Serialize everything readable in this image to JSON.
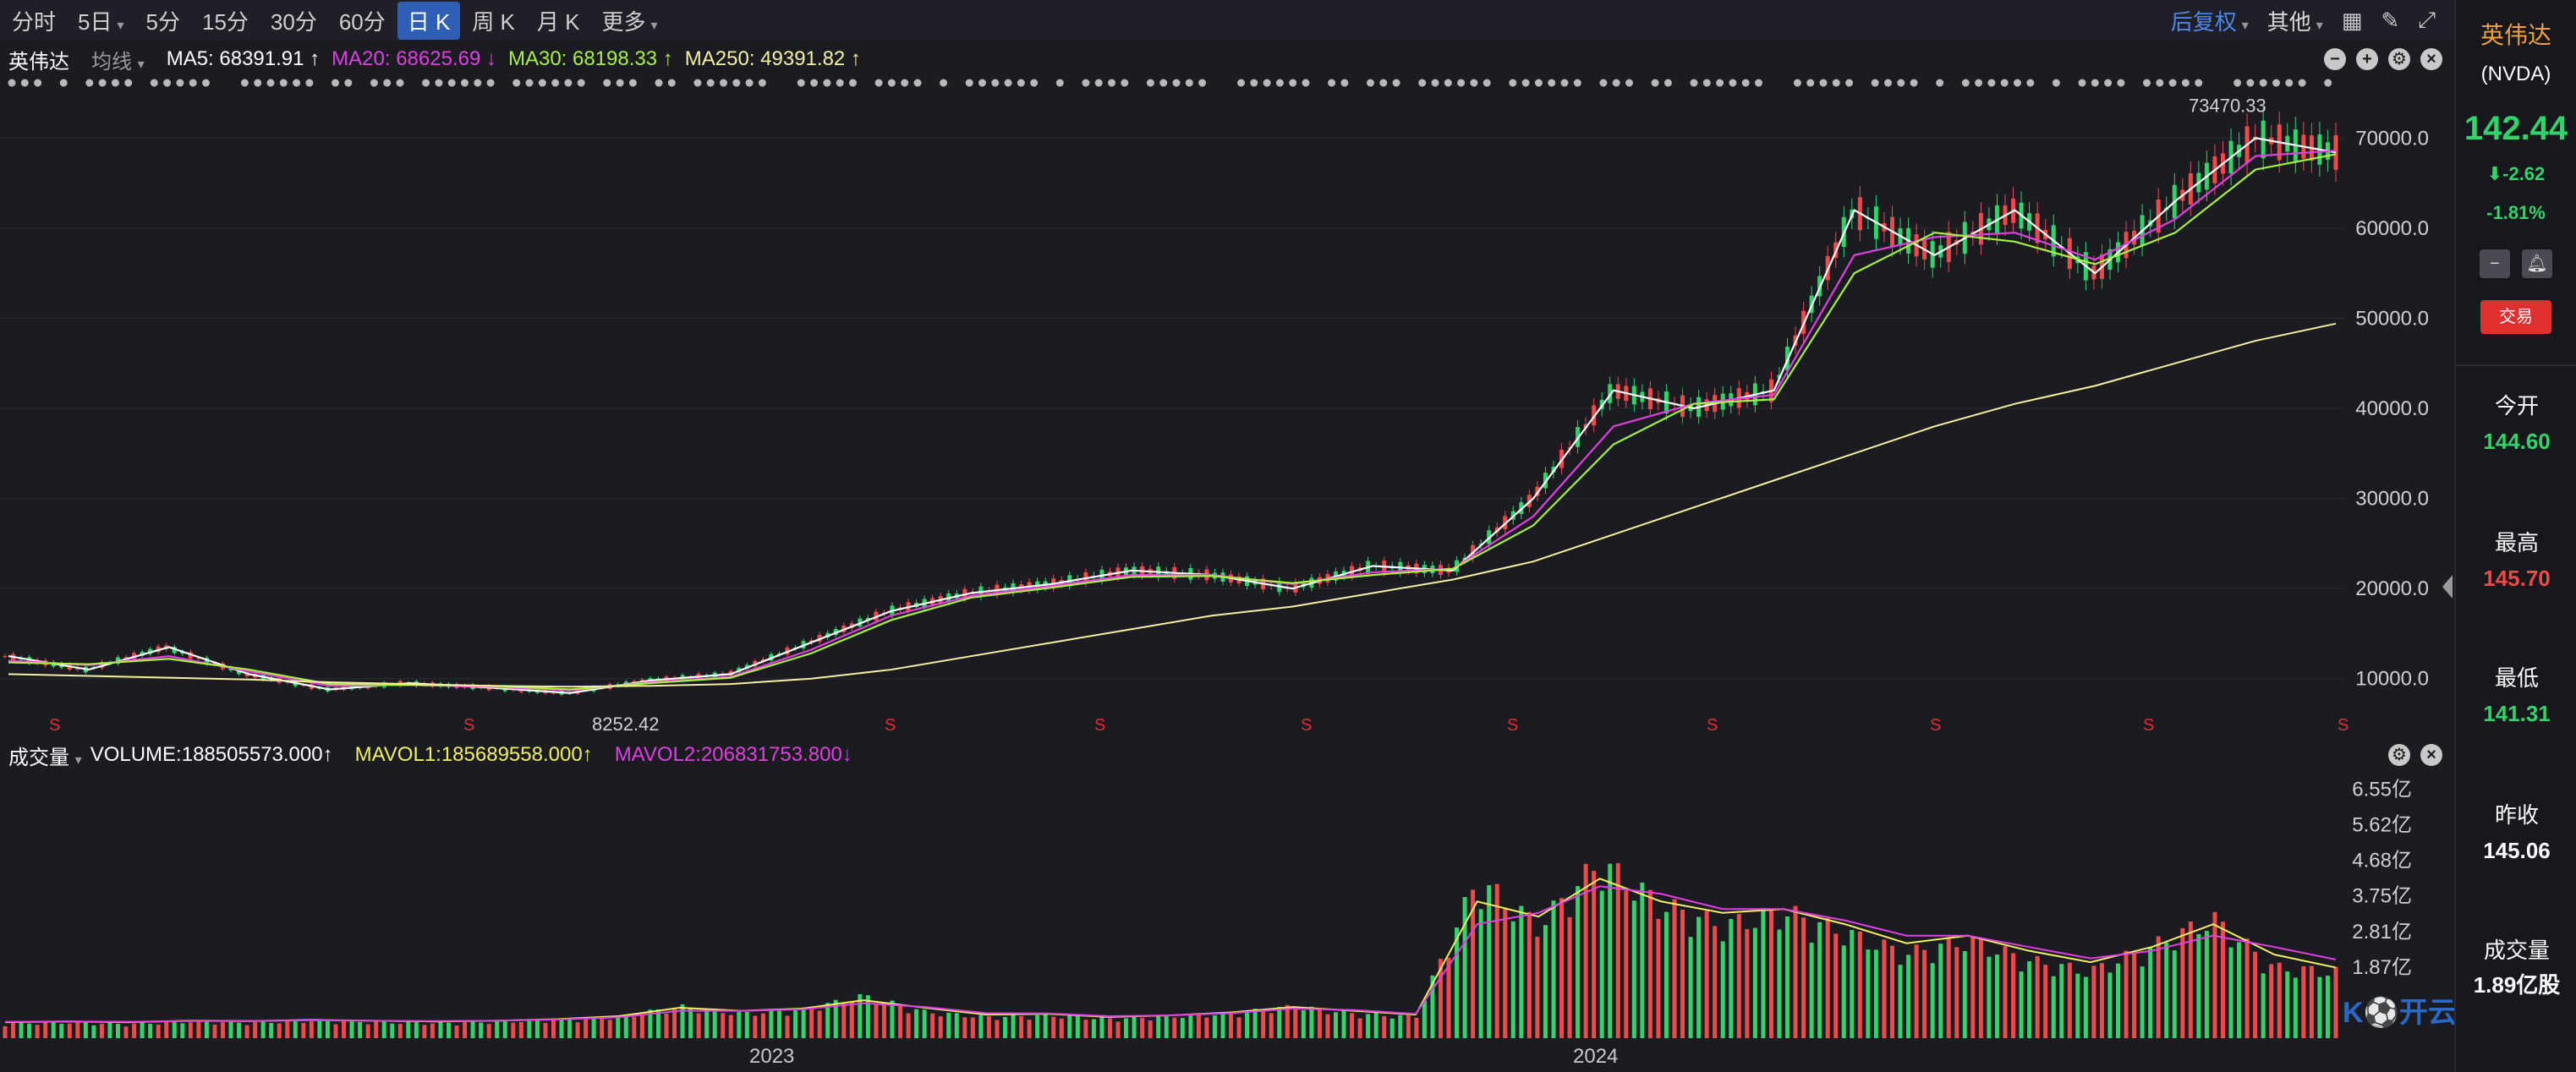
{
  "toolbar": {
    "timeframes": [
      "分时",
      "5日",
      "5分",
      "15分",
      "30分",
      "60分",
      "日 K",
      "周 K",
      "月 K",
      "更多"
    ],
    "active": "日 K",
    "adjust": "后复权",
    "other": "其他"
  },
  "main_panel": {
    "name": "英伟达",
    "indicator": "均线",
    "ma5": "MA5: 68391.91 ↑",
    "ma20": "MA20: 68625.69 ↓",
    "ma30": "MA30: 68198.33 ↑",
    "ma250": "MA250: 49391.82 ↑",
    "high_label": "73470.33",
    "low_label": "8252.42",
    "split_marker": "S"
  },
  "volume_panel": {
    "name": "成交量",
    "volume": "VOLUME:188505573.000↑",
    "mavol1": "MAVOL1:185689558.000↑",
    "mavol2": "MAVOL2:206831753.800↓"
  },
  "x_axis": {
    "labels": [
      "2023",
      "2024"
    ]
  },
  "colors": {
    "up": "#ef4a4a",
    "down": "#31d36b",
    "ma5": "#ffffff",
    "ma20": "#e040e0",
    "ma30": "#a8f040",
    "ma250": "#f5f0a0",
    "mavol1": "#f0f060",
    "mavol2": "#e040e0"
  },
  "chart_data": [
    {
      "type": "line",
      "title": "",
      "y_ticks": [
        "70000.0",
        "60000.0",
        "50000.0",
        "40000.0",
        "30000.0",
        "20000.0",
        "10000.0"
      ],
      "ylim": [
        5000,
        75000
      ],
      "series": [
        {
          "name": "MA5",
          "values": [
            12500,
            11000,
            13500,
            10500,
            8800,
            9500,
            9000,
            8400,
            9800,
            10500,
            14000,
            17500,
            19500,
            20500,
            22000,
            21500,
            20000,
            22500,
            22000,
            30000,
            42000,
            40000,
            42000,
            62000,
            57000,
            62000,
            55000,
            63000,
            70000,
            68400
          ]
        },
        {
          "name": "MA20",
          "values": [
            12000,
            11500,
            12500,
            10800,
            9200,
            9300,
            9100,
            8700,
            9600,
            10200,
            13200,
            17000,
            19200,
            20300,
            21500,
            21500,
            20500,
            21800,
            22200,
            28000,
            38000,
            40500,
            41500,
            57000,
            59000,
            59500,
            56500,
            61000,
            68000,
            68600
          ]
        },
        {
          "name": "MA30",
          "values": [
            11800,
            11600,
            12200,
            11000,
            9400,
            9300,
            9200,
            8800,
            9500,
            10100,
            12800,
            16500,
            19000,
            20100,
            21300,
            21400,
            20600,
            21500,
            22200,
            27000,
            36000,
            40500,
            41000,
            55000,
            59500,
            58500,
            56000,
            59500,
            66500,
            68200
          ]
        },
        {
          "name": "MA250",
          "values": [
            10500,
            10300,
            10100,
            9900,
            9600,
            9400,
            9200,
            9100,
            9200,
            9400,
            10000,
            11000,
            12500,
            14000,
            15500,
            17000,
            18000,
            19500,
            21000,
            23000,
            26000,
            29000,
            32000,
            35000,
            38000,
            40500,
            42500,
            45000,
            47500,
            49400
          ]
        }
      ],
      "annotations": {
        "high": 73470.33,
        "low": 8252.42
      }
    },
    {
      "type": "bar",
      "title": "",
      "y_ticks": [
        "6.55亿",
        "5.62亿",
        "4.68亿",
        "3.75亿",
        "2.81亿",
        "1.87亿"
      ],
      "ylim": [
        0,
        6.9
      ],
      "unit": "亿",
      "values": [
        0.42,
        0.45,
        0.4,
        0.48,
        0.44,
        0.5,
        0.46,
        0.43,
        0.47,
        0.52,
        0.6,
        0.9,
        0.7,
        0.8,
        1.2,
        0.75,
        0.6,
        0.65,
        0.55,
        0.62,
        0.7,
        0.9,
        0.7,
        0.6,
        4.5,
        3.2,
        5.0,
        3.8,
        3.2,
        3.6,
        3.0,
        2.4,
        2.8,
        2.2,
        1.9,
        2.6,
        3.4,
        2.0,
        1.89
      ],
      "series": [
        {
          "name": "MAVOL1",
          "values": [
            0.42,
            0.44,
            0.42,
            0.46,
            0.45,
            0.48,
            0.46,
            0.44,
            0.46,
            0.5,
            0.58,
            0.8,
            0.72,
            0.78,
            1.0,
            0.8,
            0.62,
            0.64,
            0.56,
            0.6,
            0.68,
            0.82,
            0.72,
            0.62,
            3.6,
            3.2,
            4.2,
            3.6,
            3.3,
            3.4,
            3.0,
            2.5,
            2.7,
            2.3,
            2.0,
            2.4,
            3.0,
            2.2,
            1.86
          ]
        },
        {
          "name": "MAVOL2",
          "values": [
            0.43,
            0.44,
            0.43,
            0.45,
            0.45,
            0.47,
            0.46,
            0.45,
            0.46,
            0.49,
            0.55,
            0.72,
            0.72,
            0.76,
            0.92,
            0.82,
            0.66,
            0.65,
            0.58,
            0.6,
            0.66,
            0.78,
            0.74,
            0.64,
            3.0,
            3.3,
            4.0,
            3.8,
            3.4,
            3.4,
            3.1,
            2.7,
            2.7,
            2.4,
            2.1,
            2.3,
            2.7,
            2.4,
            2.07
          ]
        }
      ]
    }
  ],
  "sidebar": {
    "name": "英伟达",
    "code": "(NVDA)",
    "price": "142.44",
    "change": "⬇-2.62",
    "pct": "-1.81%",
    "trade": "交易",
    "open_label": "今开",
    "open": "144.60",
    "high_label": "最高",
    "high": "145.70",
    "low_label": "最低",
    "low": "141.31",
    "prev_label": "昨收",
    "prev": "145.06",
    "vol_label": "成交量",
    "vol": "1.89亿股"
  },
  "watermark": "开云体育"
}
